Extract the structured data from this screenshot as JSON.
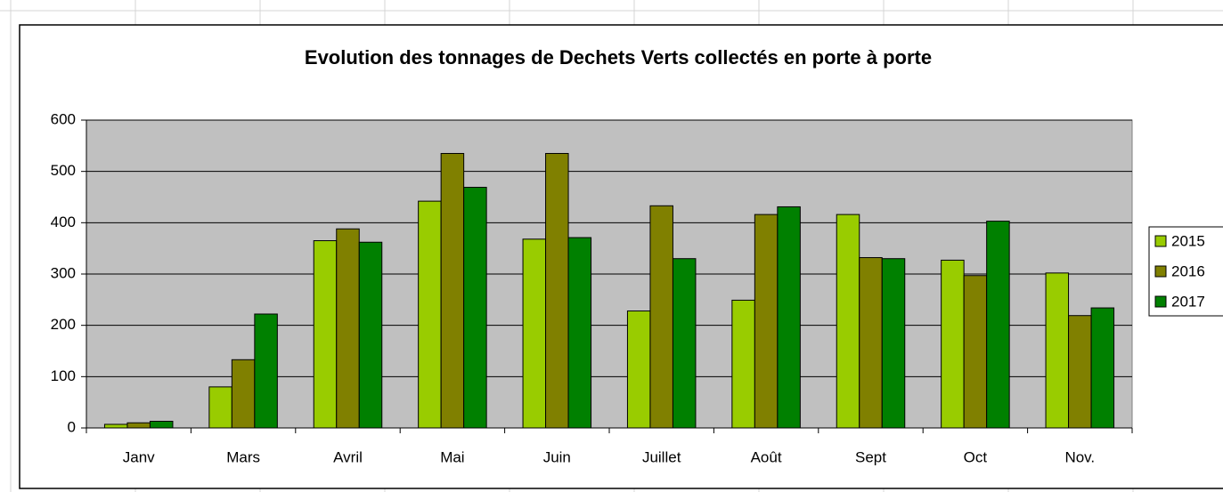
{
  "chart_data": {
    "type": "bar",
    "title": "Evolution des tonnages de Dechets Verts collectés en porte à porte",
    "categories": [
      "Janv",
      "Mars",
      "Avril",
      "Mai",
      "Juin",
      "Juillet",
      "Août",
      "Sept",
      "Oct",
      "Nov."
    ],
    "series": [
      {
        "name": "2015",
        "color": "#99cc00",
        "values": [
          7,
          80,
          365,
          442,
          368,
          228,
          249,
          416,
          327,
          302
        ]
      },
      {
        "name": "2016",
        "color": "#808000",
        "values": [
          10,
          133,
          388,
          535,
          535,
          433,
          416,
          332,
          297,
          219
        ]
      },
      {
        "name": "2017",
        "color": "#008000",
        "values": [
          13,
          222,
          362,
          469,
          371,
          330,
          431,
          330,
          403,
          234
        ]
      }
    ],
    "ylim": [
      0,
      600
    ],
    "yticks": [
      0,
      100,
      200,
      300,
      400,
      500,
      600
    ],
    "grid": true,
    "legend": "right"
  }
}
